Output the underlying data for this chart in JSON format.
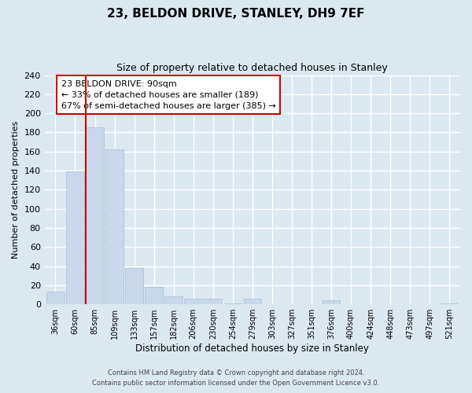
{
  "title": "23, BELDON DRIVE, STANLEY, DH9 7EF",
  "subtitle": "Size of property relative to detached houses in Stanley",
  "xlabel": "Distribution of detached houses by size in Stanley",
  "ylabel": "Number of detached properties",
  "bar_labels": [
    "36sqm",
    "60sqm",
    "85sqm",
    "109sqm",
    "133sqm",
    "157sqm",
    "182sqm",
    "206sqm",
    "230sqm",
    "254sqm",
    "279sqm",
    "303sqm",
    "327sqm",
    "351sqm",
    "376sqm",
    "400sqm",
    "424sqm",
    "448sqm",
    "473sqm",
    "497sqm",
    "521sqm"
  ],
  "bar_values": [
    13,
    139,
    185,
    162,
    38,
    18,
    8,
    6,
    6,
    1,
    6,
    0,
    0,
    0,
    4,
    0,
    0,
    0,
    0,
    0,
    1
  ],
  "bar_color": "#c8d8ea",
  "bar_edge_color": "#aabfd8",
  "ylim": [
    0,
    240
  ],
  "yticks": [
    0,
    20,
    40,
    60,
    80,
    100,
    120,
    140,
    160,
    180,
    200,
    220,
    240
  ],
  "property_line_color": "#cc0000",
  "annotation_title": "23 BELDON DRIVE: 90sqm",
  "annotation_line1": "← 33% of detached houses are smaller (189)",
  "annotation_line2": "67% of semi-detached houses are larger (385) →",
  "annotation_box_color": "#ffffff",
  "annotation_box_edge": "#cc0000",
  "footer1": "Contains HM Land Registry data © Crown copyright and database right 2024.",
  "footer2": "Contains public sector information licensed under the Open Government Licence v3.0.",
  "background_color": "#dce8f0",
  "plot_background": "#dce8f0",
  "grid_color": "#ffffff"
}
